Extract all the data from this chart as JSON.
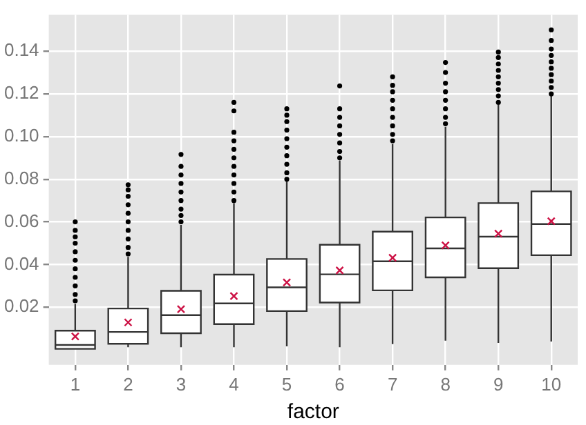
{
  "chart_data": {
    "type": "box",
    "xlabel": "factor",
    "categories": [
      "1",
      "2",
      "3",
      "4",
      "5",
      "6",
      "7",
      "8",
      "9",
      "10"
    ],
    "ylim": [
      -0.007,
      0.157
    ],
    "yticks": [
      0.02,
      0.04,
      0.06,
      0.08,
      {
        "value": 0.1,
        "label": "0.10"
      },
      0.12,
      0.14
    ],
    "grid": true,
    "boxes": [
      {
        "low": 0.0005,
        "q1": 0.0005,
        "median": 0.0023,
        "q3": 0.009,
        "high": 0.0216,
        "mean": 0.0063,
        "outliers": [
          0.023,
          0.026,
          0.03,
          0.034,
          0.038,
          0.042,
          0.046,
          0.05,
          0.053,
          0.056,
          0.06
        ]
      },
      {
        "low": 0.0013,
        "q1": 0.0029,
        "median": 0.0084,
        "q3": 0.0194,
        "high": 0.0436,
        "mean": 0.0129,
        "outliers": [
          0.045,
          0.048,
          0.052,
          0.056,
          0.06,
          0.064,
          0.068,
          0.072,
          0.075,
          0.0774
        ]
      },
      {
        "low": 0.0013,
        "q1": 0.0078,
        "median": 0.0163,
        "q3": 0.0277,
        "high": 0.0586,
        "mean": 0.0191,
        "outliers": [
          0.06,
          0.063,
          0.066,
          0.07,
          0.074,
          0.078,
          0.082,
          0.086,
          0.0916
        ]
      },
      {
        "low": 0.0013,
        "q1": 0.0121,
        "median": 0.0218,
        "q3": 0.0353,
        "high": 0.0688,
        "mean": 0.0252,
        "outliers": [
          0.07,
          0.074,
          0.078,
          0.082,
          0.086,
          0.09,
          0.094,
          0.098,
          0.102,
          0.112,
          0.116
        ]
      },
      {
        "low": 0.0017,
        "q1": 0.0182,
        "median": 0.0293,
        "q3": 0.0426,
        "high": 0.079,
        "mean": 0.0316,
        "outliers": [
          0.08,
          0.083,
          0.087,
          0.091,
          0.095,
          0.099,
          0.103,
          0.107,
          0.11,
          0.113
        ]
      },
      {
        "low": 0.0013,
        "q1": 0.0222,
        "median": 0.0354,
        "q3": 0.0493,
        "high": 0.0887,
        "mean": 0.0373,
        "outliers": [
          0.09,
          0.093,
          0.097,
          0.101,
          0.105,
          0.109,
          0.113,
          0.1237
        ]
      },
      {
        "low": 0.0027,
        "q1": 0.0279,
        "median": 0.0415,
        "q3": 0.0554,
        "high": 0.0965,
        "mean": 0.0432,
        "outliers": [
          0.098,
          0.101,
          0.105,
          0.109,
          0.113,
          0.117,
          0.121,
          0.124,
          0.128
        ]
      },
      {
        "low": 0.0043,
        "q1": 0.034,
        "median": 0.0476,
        "q3": 0.0621,
        "high": 0.1046,
        "mean": 0.049,
        "outliers": [
          0.106,
          0.109,
          0.113,
          0.117,
          0.121,
          0.125,
          0.13,
          0.1347
        ]
      },
      {
        "low": 0.0033,
        "q1": 0.0383,
        "median": 0.0531,
        "q3": 0.0688,
        "high": 0.1148,
        "mean": 0.0545,
        "outliers": [
          0.116,
          0.119,
          0.122,
          0.125,
          0.128,
          0.131,
          0.134,
          0.137,
          0.1396
        ]
      },
      {
        "low": 0.0039,
        "q1": 0.0444,
        "median": 0.059,
        "q3": 0.0743,
        "high": 0.1192,
        "mean": 0.0603,
        "outliers": [
          0.12,
          0.123,
          0.126,
          0.129,
          0.132,
          0.135,
          0.138,
          0.141,
          0.145,
          0.15
        ]
      }
    ]
  }
}
